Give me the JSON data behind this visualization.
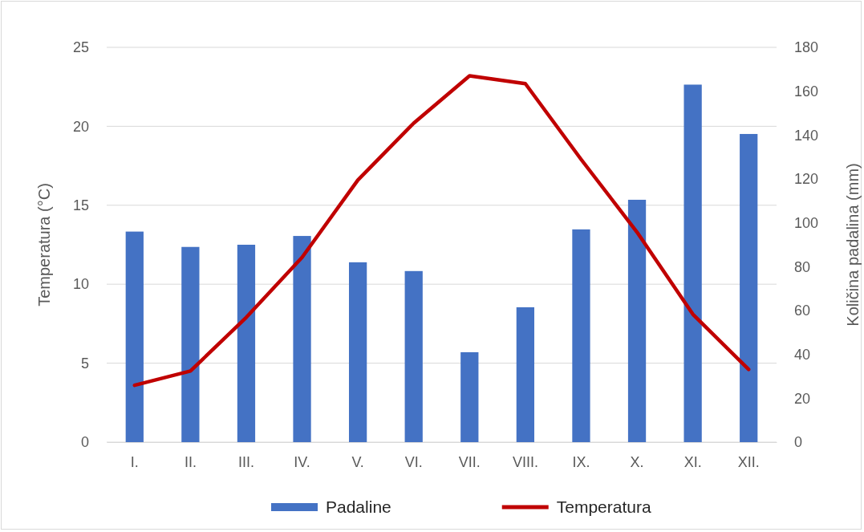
{
  "chart_data": {
    "type": "bar",
    "ylabel": "Temperatura (°C)",
    "y2label": "Količina padalina (mm)",
    "categories": [
      "I.",
      "II.",
      "III.",
      "IV.",
      "V.",
      "VI.",
      "VII.",
      "VIII.",
      "IX.",
      "X.",
      "XI.",
      "XII."
    ],
    "series": [
      {
        "name": "Padaline",
        "axis": "y2",
        "color": "#4472c4",
        "values": [
          96,
          89,
          90,
          94,
          82,
          78,
          41,
          61.5,
          97,
          110.5,
          163,
          140.5
        ]
      },
      {
        "name": "Temperatura",
        "type": "line",
        "color": "#c00000",
        "values": [
          3.6,
          4.5,
          7.9,
          11.7,
          16.6,
          20.2,
          23.2,
          22.7,
          17.9,
          13.3,
          8.1,
          4.6
        ]
      }
    ],
    "ylim": [
      0,
      25
    ],
    "yticks": [
      0,
      5,
      10,
      15,
      20,
      25
    ],
    "y2lim": [
      0,
      180
    ],
    "y2ticks": [
      0,
      20,
      40,
      60,
      80,
      100,
      120,
      140,
      160,
      180
    ],
    "grid": "y",
    "legend": "bottom",
    "marker": "none",
    "line_style": "solid"
  }
}
